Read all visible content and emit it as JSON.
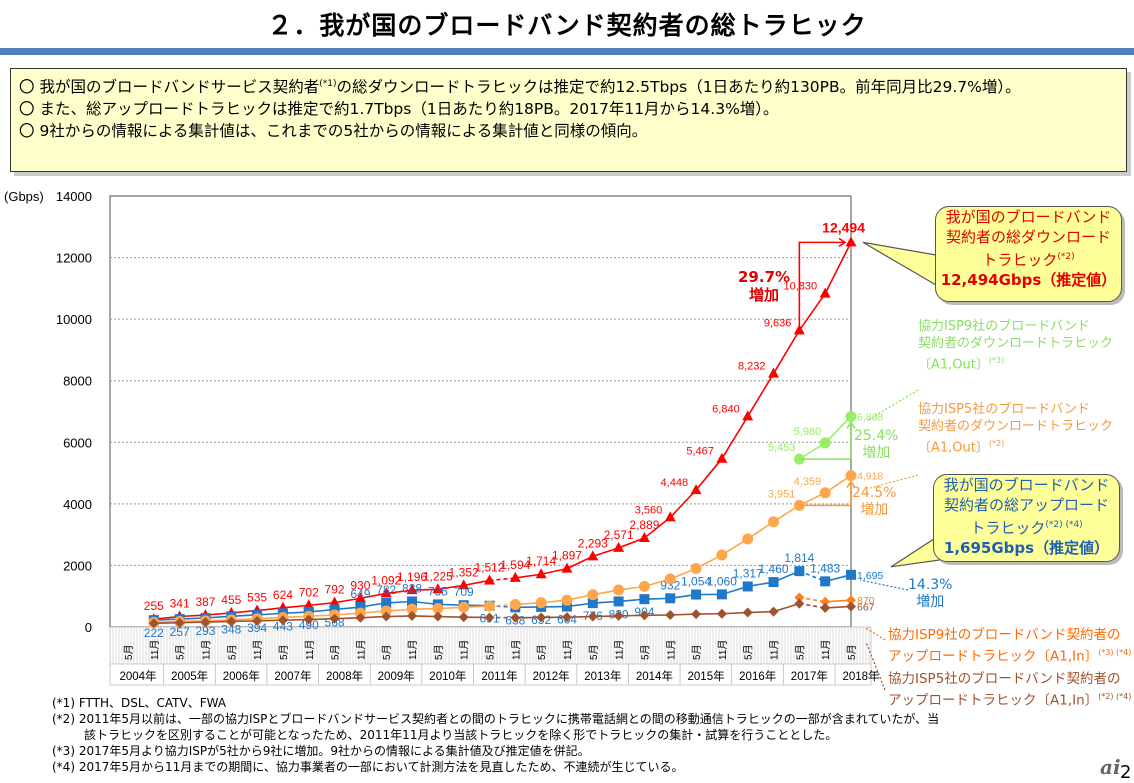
{
  "title": "２．我が国のブロードバンド契約者の総トラヒック",
  "summary": [
    {
      "bullet": "〇",
      "text": "我が国のブロードバンドサービス契約者",
      "sup": "(*1)",
      "text2": "の総ダウンロードトラヒックは推定で約12.5Tbps（1日あたり約130PB。前年同月比29.7%増）。"
    },
    {
      "bullet": "〇",
      "text": "また、総アップロードトラヒックは推定で約1.7Tbps（1日あたり約18PB。2017年11月から14.3%増）。"
    },
    {
      "bullet": "〇",
      "text": "9社からの情報による集計値は、これまでの5社からの情報による集計値と同様の傾向。"
    }
  ],
  "callouts": {
    "download": {
      "line1": "我が国のブロードバンド",
      "line2": "契約者の総ダウンロード",
      "line3": "トラヒック",
      "sup": "(*2)",
      "value": "12,494Gbps（推定値）"
    },
    "upload": {
      "line1": "我が国のブロードバンド",
      "line2": "契約者の総アップロード",
      "line3": "トラヒック",
      "sup": "(*2) (*4)",
      "value": "1,695Gbps（推定値）"
    }
  },
  "annotations": {
    "isp9_down": {
      "line1": "協力ISP9社のブロードバンド",
      "line2": "契約者のダウンロードトラヒック",
      "line3": "〔A1,Out〕",
      "sup": "(*3)"
    },
    "isp5_down": {
      "line1": "協力ISP5社のブロードバンド",
      "line2": "契約者のダウンロードトラヒック",
      "line3": "〔A1,Out〕",
      "sup": "(*2)"
    },
    "isp9_up": {
      "line1": "協力ISP9社のブロードバンド契約者の",
      "line2": "アップロードトラヒック〔A1,In〕",
      "sup": "(*3) (*4)"
    },
    "isp5_up": {
      "line1": "協力ISP5社のブロードバンド契約者の",
      "line2": "アップロードトラヒック〔A1,In〕",
      "sup": "(*2) (*4)"
    },
    "red_growth": {
      "pct": "29.7%",
      "word": "増加"
    },
    "green_growth": {
      "pct": "25.4%",
      "word": "増加"
    },
    "orange_growth": {
      "pct": "24.5%",
      "word": "増加"
    },
    "blue_growth": {
      "pct": "14.3%",
      "word": "増加"
    }
  },
  "footnotes": [
    "(*1) FTTH、DSL、CATV、FWA",
    "(*2) 2011年5月以前は、一部の協力ISPとブロードバンドサービス契約者との間のトラヒックに携帯電話網との間の移動通信トラヒックの一部が含まれていたが、当",
    "該トラヒックを区別することが可能となったため、2011年11月より当該トラヒックを除く形でトラヒックの集計・試算を行うこととした。",
    "(*3) 2017年5月より協力ISPが5社から9社に増加。9社からの情報による集計値及び推定値を併記。",
    "(*4) 2017年5月から11月までの期間に、協力事業者の一部において計測方法を見直したため、不連続が生じている。"
  ],
  "page_number": "2",
  "logo_text": "ai",
  "chart_data": {
    "type": "line",
    "title": "",
    "ylabel": "(Gbps)",
    "ylim": [
      0,
      14000
    ],
    "yticks": [
      0,
      2000,
      4000,
      6000,
      8000,
      10000,
      12000,
      14000
    ],
    "grid": true,
    "x_month_labels": [
      "5月",
      "11月",
      "5月",
      "11月",
      "5月",
      "11月",
      "5月",
      "11月",
      "5月",
      "11月",
      "5月",
      "11月",
      "5月",
      "11月",
      "5月",
      "11月",
      "5月",
      "11月",
      "5月",
      "11月",
      "5月",
      "11月",
      "5月",
      "11月",
      "5月",
      "11月",
      "5月",
      "11月",
      "5月"
    ],
    "x_year_labels": [
      "2004年",
      "2005年",
      "2006年",
      "2007年",
      "2008年",
      "2009年",
      "2010年",
      "2011年",
      "2012年",
      "2013年",
      "2014年",
      "2015年",
      "2016年",
      "2017年",
      "2018年"
    ],
    "series": [
      {
        "name": "我が国のブロードバンド契約者の総ダウンロードトラヒック",
        "color": "#ff0000",
        "marker": "triangle",
        "x": [
          1,
          2,
          3,
          4,
          5,
          6,
          7,
          8,
          9,
          10,
          11,
          12,
          13,
          14,
          15,
          16,
          17,
          18,
          19,
          20,
          21,
          22,
          23,
          24,
          25,
          26,
          27,
          28
        ],
        "values": [
          255,
          341,
          387,
          455,
          535,
          624,
          702,
          792,
          930,
          1092,
          1196,
          1225,
          1352,
          1512,
          1594,
          1714,
          1897,
          2293,
          2571,
          2889,
          3560,
          4448,
          5467,
          6840,
          8232,
          9636,
          10830,
          12494
        ],
        "labels": true,
        "break_after_index": 13
      },
      {
        "name": "我が国のブロードバンド契約者の総アップロードトラヒック",
        "color": "#1f78c8",
        "marker": "square",
        "x": [
          1,
          2,
          3,
          4,
          5,
          6,
          7,
          8,
          9,
          10,
          11,
          12,
          13,
          14,
          15,
          16,
          17,
          18,
          19,
          20,
          21,
          22,
          23,
          24,
          25,
          26,
          27,
          28
        ],
        "values": [
          222,
          257,
          293,
          348,
          394,
          443,
          490,
          568,
          649,
          782,
          828,
          735,
          709,
          691,
          638,
          652,
          664,
          776,
          830,
          904,
          932,
          1054,
          1060,
          1317,
          1460,
          1814,
          1483,
          1695
        ],
        "labels": true,
        "break_after_index": 13
      },
      {
        "name": "協力ISP5社のブロードバンド契約者のダウンロードトラヒック〔A1,Out〕",
        "color": "#ffa64d",
        "marker": "circle",
        "x": [
          1,
          2,
          3,
          4,
          5,
          6,
          7,
          8,
          9,
          10,
          11,
          12,
          13,
          14,
          15,
          16,
          17,
          18,
          19,
          20,
          21,
          22,
          23,
          24,
          25,
          26,
          27,
          28
        ],
        "values": [
          150,
          180,
          200,
          230,
          270,
          310,
          350,
          390,
          450,
          520,
          580,
          600,
          640,
          680,
          730,
          790,
          870,
          1050,
          1200,
          1320,
          1560,
          1900,
          2340,
          2860,
          3420,
          3951,
          4359,
          4918
        ],
        "labels": false,
        "point_labels": {
          "26": "3,951",
          "27": "4,359",
          "28": "4,918"
        },
        "break_after_index": 13
      },
      {
        "name": "協力ISP9社のブロードバンド契約者のダウンロードトラヒック〔A1,Out〕",
        "color": "#99ee66",
        "marker": "circle",
        "x": [
          26,
          27,
          28
        ],
        "values": [
          5453,
          5980,
          6838
        ],
        "labels": true
      },
      {
        "name": "協力ISP9社のブロードバンド契約者のアップロードトラヒック〔A1,In〕",
        "color": "#ff7f1a",
        "marker": "diamond",
        "x": [
          26,
          27,
          28
        ],
        "values": [
          960,
          820,
          870
        ],
        "labels": false,
        "point_labels": {
          "28": "870"
        }
      },
      {
        "name": "協力ISP5社のブロードバンド契約者のアップロードトラヒック〔A1,In〕",
        "color": "#a0522d",
        "marker": "diamond",
        "x": [
          1,
          2,
          3,
          4,
          5,
          6,
          7,
          8,
          9,
          10,
          11,
          12,
          13,
          14,
          15,
          16,
          17,
          18,
          19,
          20,
          21,
          22,
          23,
          24,
          25,
          26,
          27,
          28
        ],
        "values": [
          120,
          140,
          160,
          180,
          200,
          220,
          240,
          270,
          300,
          340,
          360,
          340,
          320,
          310,
          300,
          310,
          320,
          340,
          360,
          380,
          390,
          420,
          430,
          470,
          500,
          760,
          620,
          667
        ],
        "labels": false,
        "point_labels": {
          "28": "667"
        },
        "break_after_index": 13
      }
    ]
  }
}
